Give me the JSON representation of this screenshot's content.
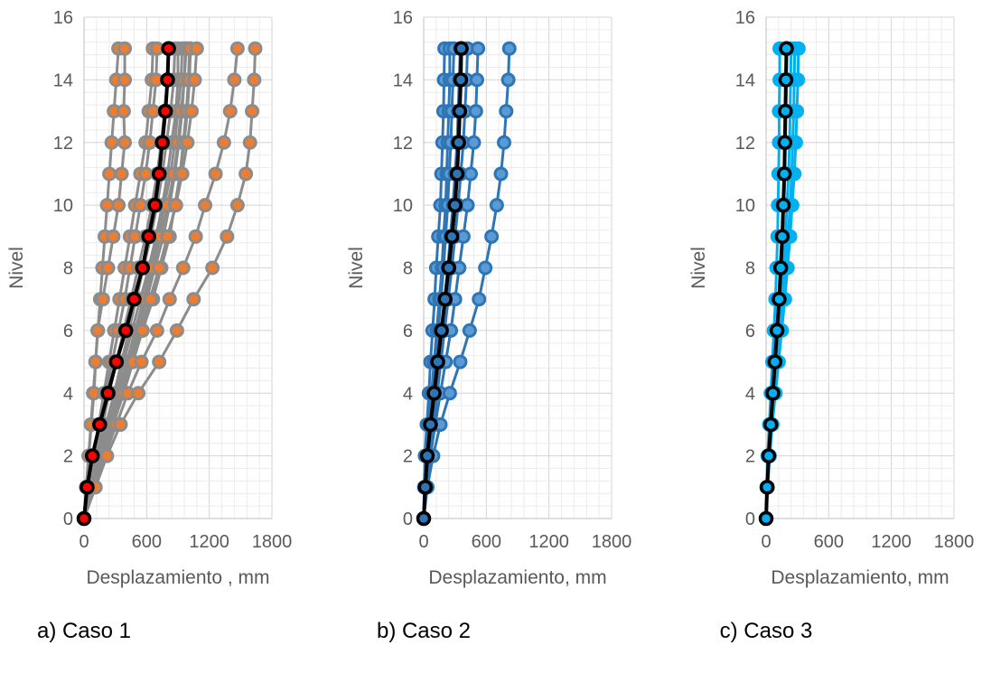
{
  "chart_data": [
    {
      "type": "line",
      "caption": "a) Caso 1",
      "xlabel": "Desplazamiento , mm",
      "ylabel": "Nivel",
      "xlim": [
        0,
        1800
      ],
      "ylim": [
        0,
        16
      ],
      "xticks": [
        "0",
        "600",
        "1200",
        "1800"
      ],
      "yticks": [
        "0",
        "2",
        "4",
        "6",
        "8",
        "10",
        "12",
        "14",
        "16"
      ],
      "grid": true,
      "colors": {
        "records": "#8c8c8c",
        "record_marker_fill": "#ed7d31",
        "mean_line": "#000000",
        "mean_marker_fill": "#ff0000"
      },
      "levels": [
        0,
        1,
        2,
        3,
        4,
        5,
        6,
        7,
        8,
        9,
        10,
        11,
        12,
        13,
        14,
        15
      ],
      "records": [
        {
          "values": [
            0,
            22,
            44,
            66,
            88,
            111,
            133,
            155,
            177,
            199,
            221,
            243,
            265,
            287,
            309,
            330
          ]
        },
        {
          "values": [
            0,
            20,
            45,
            70,
            95,
            110,
            130,
            180,
            230,
            280,
            330,
            360,
            390,
            380,
            390,
            390
          ]
        },
        {
          "values": [
            0,
            40,
            90,
            140,
            190,
            240,
            290,
            340,
            390,
            440,
            490,
            540,
            590,
            620,
            650,
            660
          ]
        },
        {
          "values": [
            0,
            45,
            95,
            150,
            210,
            270,
            330,
            390,
            440,
            490,
            540,
            590,
            630,
            660,
            690,
            700
          ]
        },
        {
          "values": [
            0,
            60,
            120,
            180,
            240,
            310,
            380,
            450,
            520,
            590,
            650,
            700,
            740,
            770,
            800,
            810
          ]
        },
        {
          "values": [
            0,
            65,
            135,
            210,
            290,
            360,
            430,
            500,
            570,
            640,
            700,
            750,
            790,
            830,
            860,
            870
          ]
        },
        {
          "values": [
            0,
            70,
            150,
            230,
            310,
            380,
            460,
            540,
            620,
            690,
            750,
            800,
            840,
            880,
            900,
            900
          ]
        },
        {
          "values": [
            0,
            75,
            165,
            250,
            330,
            410,
            490,
            570,
            640,
            710,
            770,
            830,
            870,
            900,
            930,
            940
          ]
        },
        {
          "values": [
            0,
            80,
            170,
            260,
            350,
            440,
            520,
            600,
            680,
            760,
            820,
            870,
            910,
            940,
            960,
            970
          ]
        },
        {
          "values": [
            0,
            70,
            160,
            250,
            340,
            420,
            500,
            580,
            660,
            730,
            800,
            860,
            900,
            930,
            960,
            980
          ]
        },
        {
          "values": [
            0,
            85,
            180,
            270,
            360,
            450,
            540,
            630,
            720,
            800,
            880,
            920,
            950,
            980,
            1000,
            1010
          ]
        },
        {
          "values": [
            0,
            85,
            180,
            280,
            370,
            460,
            560,
            660,
            740,
            820,
            870,
            920,
            960,
            990,
            1010,
            1020
          ]
        },
        {
          "values": [
            0,
            90,
            180,
            280,
            380,
            470,
            560,
            640,
            720,
            800,
            880,
            940,
            990,
            1030,
            1060,
            1080
          ]
        },
        {
          "values": [
            0,
            95,
            200,
            310,
            420,
            550,
            700,
            820,
            950,
            1070,
            1160,
            1260,
            1340,
            1400,
            1440,
            1470
          ]
        },
        {
          "values": [
            0,
            110,
            220,
            350,
            520,
            720,
            890,
            1050,
            1230,
            1370,
            1470,
            1550,
            1590,
            1610,
            1630,
            1640
          ]
        }
      ],
      "mean": {
        "values": [
          0,
          30,
          80,
          150,
          230,
          310,
          400,
          480,
          560,
          620,
          680,
          720,
          750,
          780,
          800,
          810
        ]
      }
    },
    {
      "type": "line",
      "caption": "b) Caso 2",
      "xlabel": "Desplazamiento, mm",
      "ylabel": "Nivel",
      "xlim": [
        0,
        1800
      ],
      "ylim": [
        0,
        16
      ],
      "xticks": [
        "0",
        "600",
        "1200",
        "1800"
      ],
      "yticks": [
        "0",
        "2",
        "4",
        "6",
        "8",
        "10",
        "12",
        "14",
        "16"
      ],
      "grid": true,
      "colors": {
        "records": "#2e75b6",
        "record_marker_fill": "#5b9bd5",
        "mean_line": "#000000",
        "mean_marker_fill": "#2e75b6"
      },
      "levels": [
        0,
        1,
        2,
        3,
        4,
        5,
        6,
        7,
        8,
        9,
        10,
        11,
        12,
        13,
        14,
        15
      ],
      "records": [
        {
          "values": [
            0,
            5,
            12,
            30,
            50,
            65,
            85,
            105,
            120,
            140,
            160,
            170,
            180,
            190,
            195,
            200
          ]
        },
        {
          "values": [
            0,
            10,
            25,
            50,
            75,
            100,
            125,
            150,
            175,
            190,
            210,
            220,
            230,
            240,
            250,
            250
          ]
        },
        {
          "values": [
            0,
            15,
            35,
            60,
            90,
            115,
            140,
            165,
            190,
            210,
            230,
            245,
            260,
            270,
            280,
            290
          ]
        },
        {
          "values": [
            0,
            20,
            45,
            75,
            110,
            140,
            170,
            200,
            230,
            255,
            280,
            300,
            320,
            330,
            340,
            350
          ]
        },
        {
          "values": [
            0,
            25,
            55,
            90,
            130,
            165,
            200,
            235,
            270,
            300,
            330,
            355,
            380,
            395,
            410,
            420
          ]
        },
        {
          "values": [
            0,
            30,
            65,
            110,
            160,
            210,
            260,
            300,
            340,
            380,
            420,
            450,
            480,
            500,
            510,
            520
          ]
        },
        {
          "values": [
            0,
            35,
            90,
            160,
            250,
            350,
            440,
            530,
            590,
            650,
            700,
            740,
            770,
            790,
            810,
            820
          ]
        }
      ],
      "mean": {
        "values": [
          0,
          15,
          35,
          65,
          100,
          135,
          170,
          205,
          240,
          270,
          300,
          320,
          335,
          345,
          355,
          360
        ]
      }
    },
    {
      "type": "line",
      "caption": "c) Caso 3",
      "xlabel": "Desplazamiento, mm",
      "ylabel": "Nivel",
      "xlim": [
        0,
        1800
      ],
      "ylim": [
        0,
        16
      ],
      "xticks": [
        "0",
        "600",
        "1200",
        "1800"
      ],
      "yticks": [
        "0",
        "2",
        "4",
        "6",
        "8",
        "10",
        "12",
        "14",
        "16"
      ],
      "grid": true,
      "colors": {
        "records": "#00b0f0",
        "record_marker_fill": "#00b0f0",
        "mean_line": "#000000",
        "mean_marker_fill": "#00b0f0"
      },
      "levels": [
        0,
        1,
        2,
        3,
        4,
        5,
        6,
        7,
        8,
        9,
        10,
        11,
        12,
        13,
        14,
        15
      ],
      "records": [
        {
          "values": [
            0,
            5,
            15,
            30,
            45,
            60,
            75,
            90,
            100,
            110,
            115,
            120,
            125,
            125,
            130,
            130
          ]
        },
        {
          "values": [
            0,
            8,
            20,
            40,
            60,
            80,
            100,
            120,
            140,
            155,
            170,
            180,
            185,
            190,
            195,
            200
          ]
        },
        {
          "values": [
            0,
            10,
            25,
            45,
            70,
            95,
            120,
            145,
            165,
            185,
            200,
            215,
            225,
            230,
            235,
            240
          ]
        },
        {
          "values": [
            0,
            12,
            30,
            55,
            80,
            110,
            140,
            165,
            190,
            210,
            230,
            245,
            255,
            265,
            270,
            275
          ]
        },
        {
          "values": [
            0,
            15,
            35,
            60,
            90,
            120,
            150,
            180,
            205,
            230,
            250,
            270,
            285,
            295,
            305,
            310
          ]
        }
      ],
      "mean": {
        "values": [
          0,
          10,
          25,
          45,
          65,
          85,
          105,
          125,
          140,
          155,
          165,
          175,
          180,
          185,
          190,
          195
        ]
      }
    }
  ]
}
